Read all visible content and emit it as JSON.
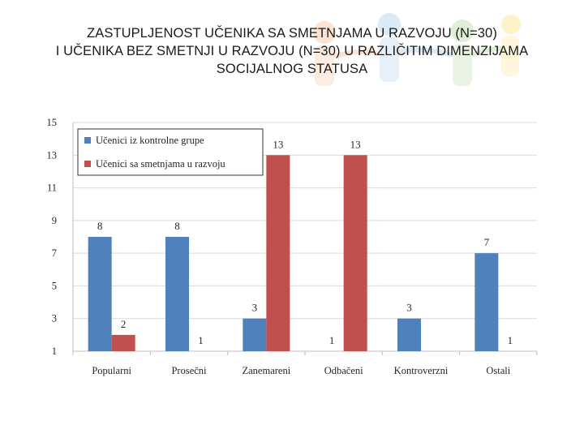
{
  "slide": {
    "title_lines": [
      "ZASTUPLJENOST UČENIKA SA SMETNJAMA U RAZVOJU (N=30)",
      "I UČENIKA BEZ SMETNJI U RAZVOJU (N=30) U RAZLIČITIM DIMENZIJAMA",
      "SOCIJALNOG STATUSA"
    ]
  },
  "chart_data": {
    "type": "bar",
    "title": "",
    "xlabel": "",
    "ylabel": "",
    "categories": [
      "Popularni",
      "Prosečni",
      "Zanemareni",
      "Odbačeni",
      "Kontroverzni",
      "Ostali"
    ],
    "series": [
      {
        "name": "Učenici iz kontrolne grupe",
        "color": "#4f81bd",
        "values": [
          8,
          8,
          3,
          1,
          3,
          7
        ],
        "labels": [
          "8",
          "8",
          "3",
          "1",
          "3",
          "7"
        ]
      },
      {
        "name": "Učenici sa smetnjama u razvoju",
        "color": "#c0504d",
        "values": [
          2,
          1,
          13,
          13,
          0,
          1
        ],
        "labels": [
          "2",
          "1",
          "13",
          "13",
          "",
          "1"
        ]
      }
    ],
    "ylim": [
      1,
      15
    ],
    "yticks": [
      1,
      3,
      5,
      7,
      9,
      11,
      13,
      15
    ],
    "legend_position": "top-left",
    "grid": true
  }
}
